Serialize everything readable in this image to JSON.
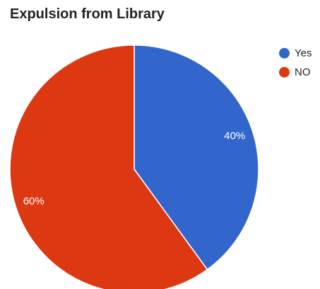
{
  "chart_data": {
    "type": "pie",
    "title": "Expulsion from Library",
    "categories": [
      "Yes",
      "NO"
    ],
    "values": [
      40,
      60
    ],
    "data_labels": [
      "40%",
      "60%"
    ],
    "colors": [
      "#3366cc",
      "#dc3912"
    ],
    "legend_position": "right"
  }
}
